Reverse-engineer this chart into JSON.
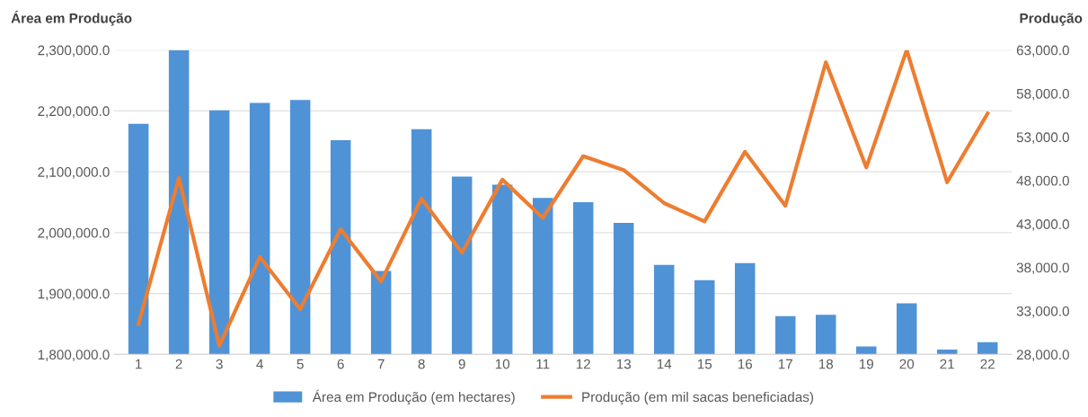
{
  "chart_data": {
    "type": "bar",
    "ylabel": "Área em Produção",
    "y2label": "Produção",
    "categories": [
      "1",
      "2",
      "3",
      "4",
      "5",
      "6",
      "7",
      "8",
      "9",
      "10",
      "11",
      "12",
      "13",
      "14",
      "15",
      "16",
      "17",
      "18",
      "19",
      "20",
      "21",
      "22"
    ],
    "series": [
      {
        "name": "Área em Produção (em hectares)",
        "color": "#4f93d6",
        "values": [
          2179000,
          2300000,
          2201000,
          2213000,
          2218000,
          2152000,
          1937000,
          2170000,
          2092000,
          2079000,
          2057000,
          2050000,
          2016000,
          1947000,
          1922000,
          1950000,
          1863000,
          1865000,
          1813000,
          1884000,
          1808000,
          1820000
        ]
      },
      {
        "name": "Produção (em mil sacas beneficiadas)",
        "type": "line",
        "axis": "y2",
        "color": "#ed7d31",
        "values": [
          31500,
          48300,
          29000,
          39200,
          33200,
          42400,
          36400,
          45900,
          39700,
          48100,
          43700,
          50800,
          49200,
          45400,
          43300,
          51300,
          45100,
          61600,
          49500,
          63000,
          47800,
          55700
        ]
      }
    ],
    "ylim": [
      1800000,
      2300000
    ],
    "yticks": [
      {
        "value": 1800000,
        "label": "1,800,000.0"
      },
      {
        "value": 1900000,
        "label": "1,900,000.0"
      },
      {
        "value": 2000000,
        "label": "2,000,000.0"
      },
      {
        "value": 2100000,
        "label": "2,100,000.0"
      },
      {
        "value": 2200000,
        "label": "2,200,000.0"
      },
      {
        "value": 2300000,
        "label": "2,300,000.0"
      }
    ],
    "y2lim": [
      28000,
      63000
    ],
    "y2ticks": [
      {
        "value": 28000,
        "label": "28,000.0"
      },
      {
        "value": 33000,
        "label": "33,000.0"
      },
      {
        "value": 38000,
        "label": "38,000.0"
      },
      {
        "value": 43000,
        "label": "43,000.0"
      },
      {
        "value": 48000,
        "label": "48,000.0"
      },
      {
        "value": 53000,
        "label": "53,000.0"
      },
      {
        "value": 58000,
        "label": "58,000.0"
      },
      {
        "value": 63000,
        "label": "63,000.0"
      }
    ],
    "grid": "y",
    "legend": "bottom",
    "marker": "none",
    "line_style": "solid"
  }
}
